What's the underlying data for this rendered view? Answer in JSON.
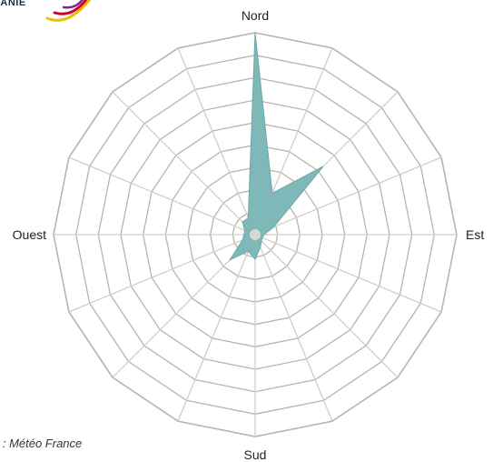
{
  "logo": {
    "text": "TANIE",
    "arc_colors": [
      "#e8c200",
      "#d2002d",
      "#7a2a8a"
    ]
  },
  "source": "e : Météo France",
  "chart_data": {
    "type": "radar",
    "title": "",
    "directions_count": 16,
    "ring_count": 9,
    "axis_labels": {
      "north": "Nord",
      "east": "Est",
      "south": "Sud",
      "west": "Ouest"
    },
    "series": [
      {
        "values": [
          9.0,
          2.0,
          4.3,
          0.9,
          0.4,
          0.35,
          0.4,
          0.6,
          1.1,
          0.8,
          1.6,
          0.6,
          0.5,
          0.5,
          0.8,
          0.8
        ]
      }
    ],
    "rlim": [
      0,
      9
    ],
    "colors": {
      "fill": "#7fb8b8",
      "stroke": "#6aa8a8",
      "grid": "#b5b5ad",
      "spoke": "#cfcfc8"
    }
  }
}
